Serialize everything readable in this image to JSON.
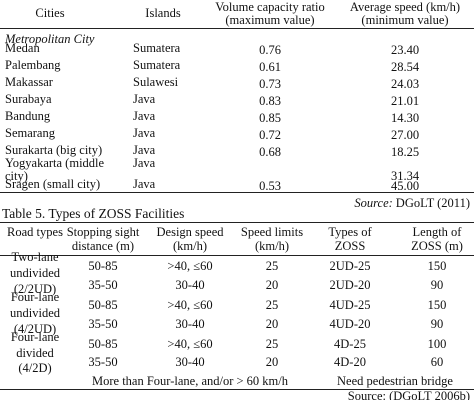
{
  "table4": {
    "header": [
      [
        "Cities"
      ],
      [
        "Islands"
      ],
      [
        "Volume capacity ratio",
        "(maximum value)"
      ],
      [
        "Average speed (km/h)",
        "(minimum value)"
      ]
    ],
    "section": "Metropolitan City",
    "rows": [
      [
        [
          "Medan"
        ],
        "Sumatera",
        "0.76",
        "23.40"
      ],
      [
        [
          "Palembang"
        ],
        "Sumatera",
        "0.61",
        "28.54"
      ],
      [
        [
          "Makassar"
        ],
        "Sulawesi",
        "0.73",
        "24.03"
      ],
      [
        [
          "Surabaya"
        ],
        "Java",
        "0.83",
        "21.01"
      ],
      [
        [
          "Bandung"
        ],
        "Java",
        "0.85",
        "14.30"
      ],
      [
        [
          "Semarang"
        ],
        "Java",
        "0.72",
        "27.00"
      ],
      [
        [
          "Surakarta (big city)"
        ],
        "Java",
        "0.68",
        "18.25"
      ],
      [
        [
          "Yogyakarta (middle",
          "city)"
        ],
        "Java",
        null,
        "31.34"
      ],
      [
        [
          "Sragen (small city)"
        ],
        "Java",
        "0.53",
        "45.00"
      ]
    ],
    "source_label": "Source:",
    "source_text": "DGoLT (2011)"
  },
  "table5": {
    "caption": "Table 5. Types of ZOSS Facilities",
    "header": [
      [
        "Road types"
      ],
      [
        "Stopping sight",
        "distance (m)"
      ],
      [
        "Design speed",
        "(km/h)"
      ],
      [
        "Speed limits",
        "(km/h)"
      ],
      [
        "Types of",
        "ZOSS"
      ],
      [
        "Length of",
        "ZOSS (m)"
      ]
    ],
    "groups": [
      {
        "road_type": [
          "Two-lane",
          "undivided",
          "(2/2UD)"
        ],
        "rows": [
          [
            "50-85",
            ">40, ≤60",
            "25",
            "2UD-25",
            "150"
          ],
          [
            "35-50",
            "30-40",
            "20",
            "2UD-20",
            "90"
          ]
        ]
      },
      {
        "road_type": [
          "Four-lane",
          "undivided",
          "(4/2UD)"
        ],
        "rows": [
          [
            "50-85",
            ">40, ≤60",
            "25",
            "4UD-25",
            "150"
          ],
          [
            "35-50",
            "30-40",
            "20",
            "4UD-20",
            "90"
          ]
        ]
      },
      {
        "road_type": [
          "Four-lane",
          "divided",
          "(4/2D)"
        ],
        "rows": [
          [
            "50-85",
            ">40, ≤60",
            "25",
            "4D-25",
            "100"
          ],
          [
            "35-50",
            "30-40",
            "20",
            "4D-20",
            "60"
          ]
        ]
      }
    ],
    "footer": [
      "More than Four-lane, and/or > 60 km/h",
      "Need pedestrian bridge"
    ],
    "source": "Source: (DGoLT 2006b)"
  }
}
